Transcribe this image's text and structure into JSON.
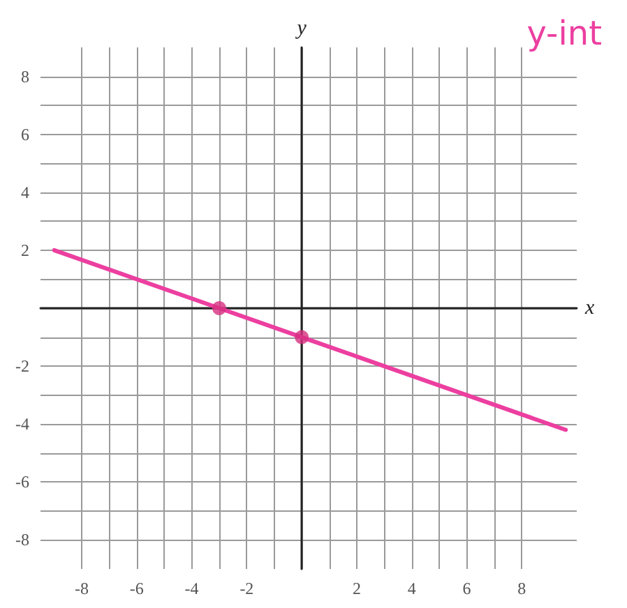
{
  "chart_data": {
    "type": "line",
    "xlabel": "x",
    "ylabel": "y",
    "annotations": [
      "y-int"
    ],
    "xlim": [
      -9.5,
      10
    ],
    "ylim": [
      -9,
      9
    ],
    "xticks": [
      {
        "value": -8,
        "label": "-8"
      },
      {
        "value": -7,
        "label": null
      },
      {
        "value": -6,
        "label": "-6"
      },
      {
        "value": -5,
        "label": null
      },
      {
        "value": -4,
        "label": "-4"
      },
      {
        "value": -3,
        "label": null
      },
      {
        "value": -2,
        "label": "-2"
      },
      {
        "value": -1,
        "label": null
      },
      {
        "value": 0,
        "label": null
      },
      {
        "value": 1,
        "label": null
      },
      {
        "value": 2,
        "label": "2"
      },
      {
        "value": 3,
        "label": null
      },
      {
        "value": 4,
        "label": "4"
      },
      {
        "value": 5,
        "label": null
      },
      {
        "value": 6,
        "label": "6"
      },
      {
        "value": 7,
        "label": null
      },
      {
        "value": 8,
        "label": "8"
      }
    ],
    "yticks": [
      {
        "value": -8,
        "label": "-8"
      },
      {
        "value": -7,
        "label": null
      },
      {
        "value": -6,
        "label": "-6"
      },
      {
        "value": -5,
        "label": null
      },
      {
        "value": -4,
        "label": "-4"
      },
      {
        "value": -3,
        "label": null
      },
      {
        "value": -2,
        "label": "-2"
      },
      {
        "value": -1,
        "label": null
      },
      {
        "value": 0,
        "label": null
      },
      {
        "value": 1,
        "label": null
      },
      {
        "value": 2,
        "label": "2"
      },
      {
        "value": 3,
        "label": null
      },
      {
        "value": 4,
        "label": "4"
      },
      {
        "value": 5,
        "label": null
      },
      {
        "value": 6,
        "label": "6"
      },
      {
        "value": 7,
        "label": null
      },
      {
        "value": 8,
        "label": "8"
      }
    ],
    "grid": true,
    "marker": "none",
    "line_style": "solid",
    "series": [
      {
        "color": "#ec3fa0",
        "x": [
          -9,
          -3,
          0,
          9.6
        ],
        "values": [
          2,
          0,
          -1,
          -4.2
        ]
      },
      {
        "type": "scatter",
        "marker": "circle",
        "color": "#d6307f",
        "x": [
          -3,
          0
        ],
        "values": [
          0,
          -1
        ]
      }
    ]
  }
}
